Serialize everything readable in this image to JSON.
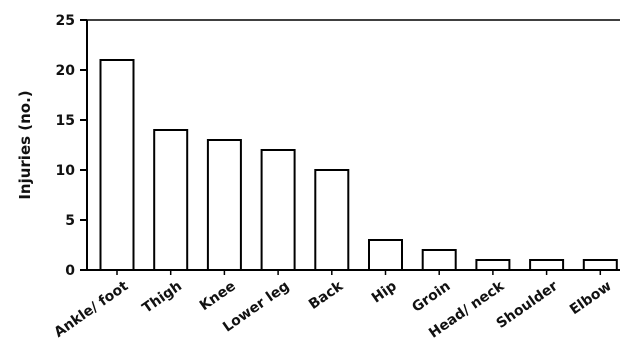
{
  "chart_data": {
    "type": "bar",
    "categories": [
      "Ankle/ foot",
      "Thigh",
      "Knee",
      "Lower leg",
      "Back",
      "Hip",
      "Groin",
      "Head/ neck",
      "Shoulder",
      "Elbow"
    ],
    "values": [
      21,
      14,
      13,
      12,
      10,
      3,
      2,
      1,
      1,
      1
    ],
    "title": "",
    "xlabel": "",
    "ylabel": "Injuries (no.)",
    "ylim": [
      0,
      25
    ],
    "yticks": [
      0,
      5,
      10,
      15,
      20,
      25
    ],
    "grid": false,
    "bar_fill": "#ffffff",
    "bar_stroke": "#000000"
  }
}
